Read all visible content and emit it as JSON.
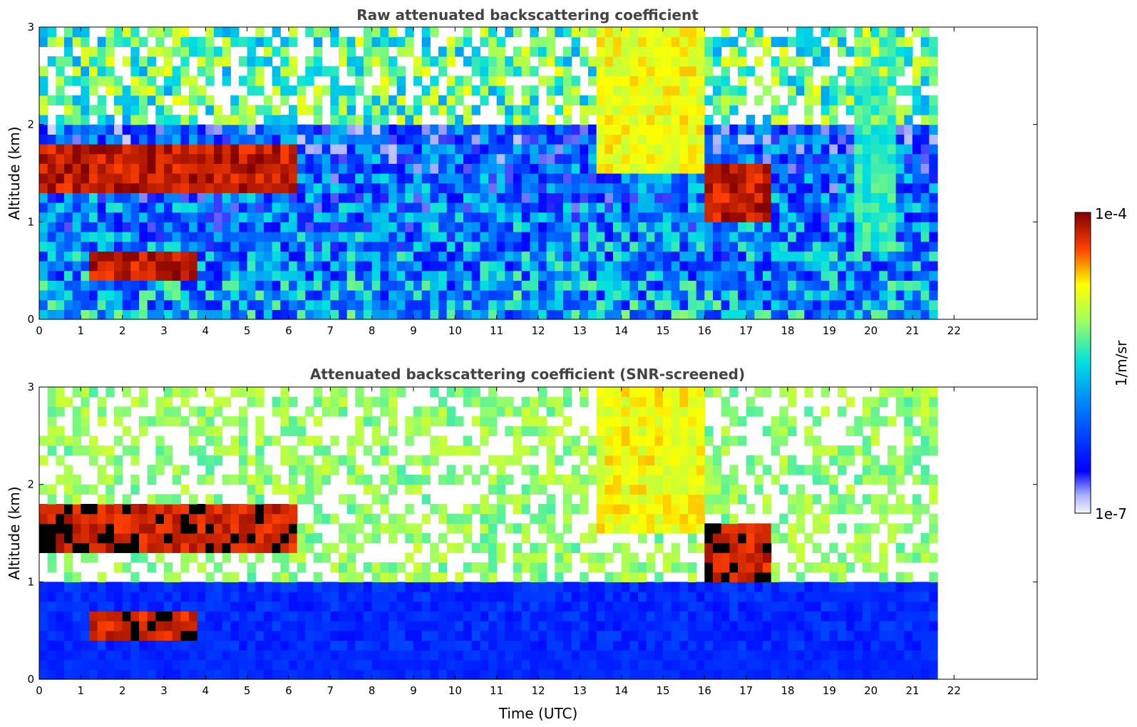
{
  "chart_data": [
    {
      "type": "heatmap",
      "title": "Raw attenuated backscattering coefficient",
      "xlabel": "",
      "ylabel": "Altitude (km)",
      "xlim": [
        0,
        24
      ],
      "ylim": [
        0,
        3
      ],
      "x_ticks": [
        "0",
        "1",
        "2",
        "3",
        "4",
        "5",
        "6",
        "7",
        "8",
        "9",
        "10",
        "11",
        "12",
        "13",
        "14",
        "15",
        "16",
        "17",
        "18",
        "19",
        "20",
        "21",
        "22"
      ],
      "y_ticks": [
        "0",
        "1",
        "2",
        "3"
      ],
      "data_extent_x": [
        0,
        21.6
      ],
      "scale": "log",
      "colormap": "jet",
      "features": [
        {
          "kind": "cloud_layer",
          "x": [
            0,
            6.3
          ],
          "altitude": [
            1.3,
            1.75
          ],
          "level": 1.0
        },
        {
          "kind": "cloud_layer",
          "x": [
            1.3,
            3.8
          ],
          "altitude": [
            0.4,
            0.65
          ],
          "level": 1.0
        },
        {
          "kind": "cloud_layer",
          "x": [
            16.1,
            17.6
          ],
          "altitude": [
            1.0,
            1.55
          ],
          "level": 1.0
        },
        {
          "kind": "precipitation",
          "x": [
            13.5,
            16.0
          ],
          "altitude": [
            1.5,
            3.0
          ],
          "level": 0.8
        },
        {
          "kind": "virga",
          "x": [
            19.7,
            20.6
          ],
          "altitude": [
            0.7,
            3.0
          ],
          "level": 0.6
        }
      ]
    },
    {
      "type": "heatmap",
      "title": "Attenuated backscattering coefficient (SNR-screened)",
      "xlabel": "Time (UTC)",
      "ylabel": "Altitude (km)",
      "xlim": [
        0,
        24
      ],
      "ylim": [
        0,
        3
      ],
      "x_ticks": [
        "0",
        "1",
        "2",
        "3",
        "4",
        "5",
        "6",
        "7",
        "8",
        "9",
        "10",
        "11",
        "12",
        "13",
        "14",
        "15",
        "16",
        "17",
        "18",
        "19",
        "20",
        "21",
        "22"
      ],
      "y_ticks": [
        "0",
        "1",
        "2",
        "3"
      ],
      "data_extent_x": [
        0,
        21.6
      ],
      "scale": "log",
      "colormap": "jet",
      "features": [
        {
          "kind": "cloud_layer",
          "x": [
            0,
            6.3
          ],
          "altitude": [
            1.3,
            1.75
          ],
          "level": 1.0
        },
        {
          "kind": "cloud_layer",
          "x": [
            1.3,
            3.8
          ],
          "altitude": [
            0.4,
            0.65
          ],
          "level": 1.0
        },
        {
          "kind": "cloud_layer",
          "x": [
            16.1,
            17.6
          ],
          "altitude": [
            1.0,
            1.55
          ],
          "level": 1.0
        },
        {
          "kind": "precipitation",
          "x": [
            13.5,
            16.0
          ],
          "altitude": [
            1.5,
            3.0
          ],
          "level": 0.8
        }
      ]
    }
  ],
  "colorbar": {
    "label": "1/m/sr",
    "max_label": "1e-4",
    "min_label": "1e-7",
    "colors": [
      "#ffffff",
      "#bcbcff",
      "#0000ff",
      "#00ffff",
      "#ffff00",
      "#ff0000",
      "#800000"
    ]
  }
}
